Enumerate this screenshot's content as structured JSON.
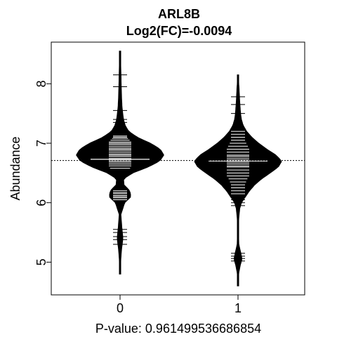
{
  "chart_data": {
    "type": "beanplot",
    "title": "ARL8B",
    "subtitle": "Log2(FC)=-0.0094",
    "xlabel": "P-value: 0.961499536686854",
    "ylabel": "Abundance",
    "categories": [
      "0",
      "1"
    ],
    "yticks": [
      "5",
      "6",
      "7",
      "8"
    ],
    "ylim": [
      4.45,
      8.7
    ],
    "overall_mean": 6.71,
    "group_means": [
      6.73,
      6.7
    ],
    "density": [
      {
        "category": "0",
        "ymin": 4.8,
        "ymax": 8.55,
        "profile": [
          [
            4.8,
            0.002
          ],
          [
            5.0,
            0.01
          ],
          [
            5.2,
            0.025
          ],
          [
            5.4,
            0.05
          ],
          [
            5.6,
            0.03
          ],
          [
            5.8,
            0.015
          ],
          [
            6.0,
            0.08
          ],
          [
            6.1,
            0.19
          ],
          [
            6.2,
            0.17
          ],
          [
            6.3,
            0.07
          ],
          [
            6.4,
            0.06
          ],
          [
            6.5,
            0.22
          ],
          [
            6.6,
            0.49
          ],
          [
            6.7,
            0.69
          ],
          [
            6.8,
            0.76
          ],
          [
            6.9,
            0.7
          ],
          [
            7.0,
            0.53
          ],
          [
            7.1,
            0.3
          ],
          [
            7.2,
            0.15
          ],
          [
            7.3,
            0.09
          ],
          [
            7.4,
            0.06
          ],
          [
            7.6,
            0.035
          ],
          [
            7.8,
            0.025
          ],
          [
            8.0,
            0.02
          ],
          [
            8.2,
            0.015
          ],
          [
            8.4,
            0.008
          ],
          [
            8.55,
            0.002
          ]
        ],
        "observations": [
          5.3,
          5.38,
          5.43,
          5.5,
          5.55,
          6.05,
          6.08,
          6.1,
          6.12,
          6.15,
          6.17,
          6.2,
          6.58,
          6.62,
          6.65,
          6.68,
          6.7,
          6.72,
          6.75,
          6.78,
          6.8,
          6.82,
          6.85,
          6.88,
          6.9,
          6.92,
          6.95,
          6.98,
          7.0,
          7.02,
          7.05,
          7.08,
          7.1,
          7.12,
          7.35,
          7.4,
          7.55,
          7.95,
          8.15
        ]
      },
      {
        "category": "1",
        "ymin": 4.6,
        "ymax": 8.15,
        "profile": [
          [
            4.6,
            0.002
          ],
          [
            4.8,
            0.01
          ],
          [
            4.95,
            0.04
          ],
          [
            5.05,
            0.07
          ],
          [
            5.15,
            0.05
          ],
          [
            5.3,
            0.015
          ],
          [
            5.5,
            0.008
          ],
          [
            5.7,
            0.01
          ],
          [
            5.9,
            0.03
          ],
          [
            6.0,
            0.06
          ],
          [
            6.1,
            0.13
          ],
          [
            6.2,
            0.2
          ],
          [
            6.3,
            0.29
          ],
          [
            6.4,
            0.41
          ],
          [
            6.5,
            0.56
          ],
          [
            6.6,
            0.7
          ],
          [
            6.7,
            0.76
          ],
          [
            6.8,
            0.66
          ],
          [
            6.9,
            0.5
          ],
          [
            7.0,
            0.36
          ],
          [
            7.1,
            0.24
          ],
          [
            7.2,
            0.15
          ],
          [
            7.3,
            0.09
          ],
          [
            7.4,
            0.06
          ],
          [
            7.5,
            0.045
          ],
          [
            7.7,
            0.03
          ],
          [
            7.9,
            0.02
          ],
          [
            8.05,
            0.01
          ],
          [
            8.15,
            0.002
          ]
        ],
        "observations": [
          5.02,
          5.06,
          5.1,
          5.15,
          5.95,
          6.0,
          6.05,
          6.1,
          6.15,
          6.2,
          6.25,
          6.3,
          6.35,
          6.4,
          6.45,
          6.5,
          6.55,
          6.6,
          6.62,
          6.65,
          6.68,
          6.7,
          6.72,
          6.75,
          6.78,
          6.8,
          6.85,
          6.9,
          6.95,
          7.0,
          7.05,
          7.1,
          7.15,
          7.2,
          7.25,
          7.5,
          7.65,
          7.78
        ]
      }
    ],
    "grid": false,
    "legend": "none",
    "colors": {
      "fill": "#000000",
      "bean_lines": "#ffffff",
      "axis": "#000000",
      "background": "#ffffff"
    }
  }
}
